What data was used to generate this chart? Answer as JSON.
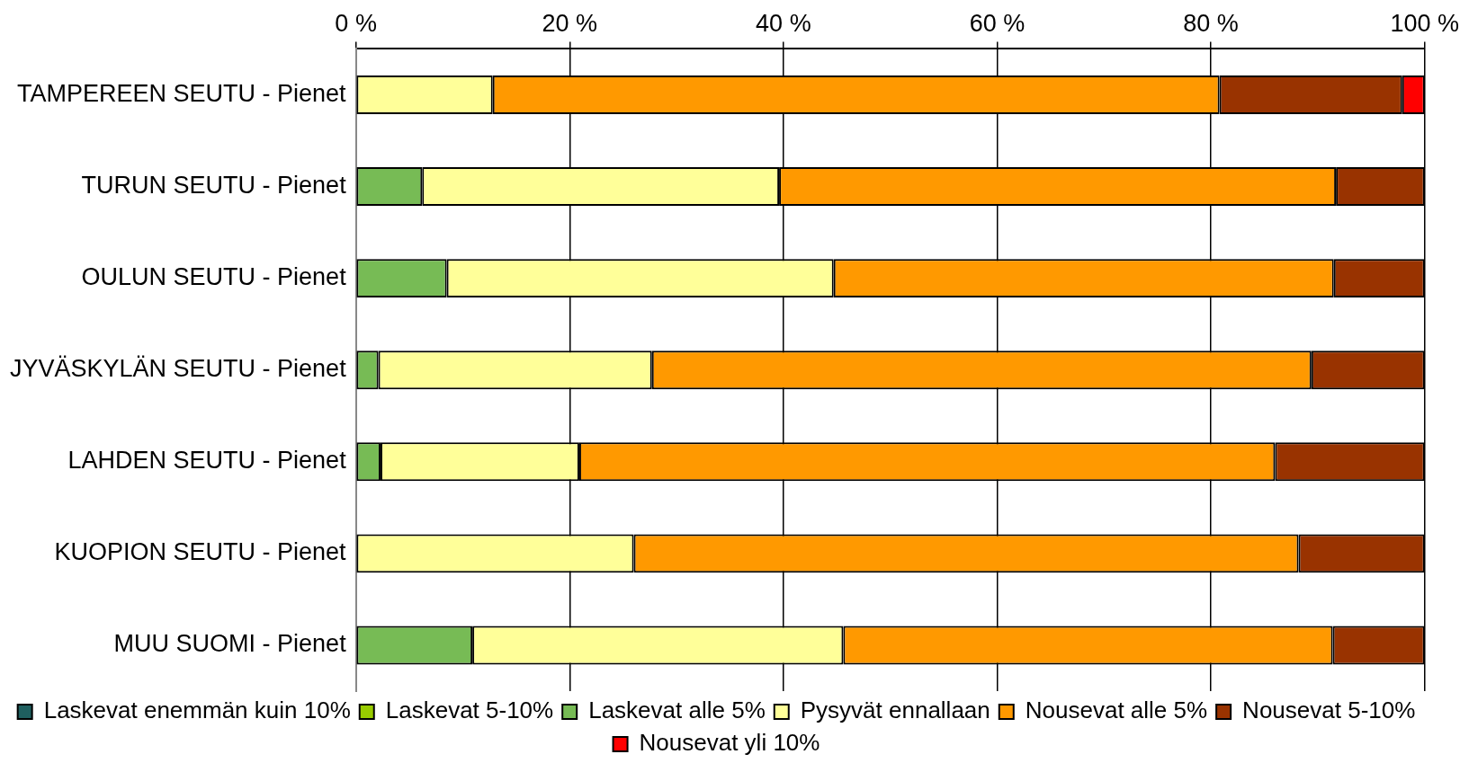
{
  "chart_data": {
    "type": "bar",
    "orientation": "horizontal",
    "stacked": true,
    "categories": [
      "TAMPEREEN SEUTU - Pienet",
      "TURUN SEUTU - Pienet",
      "OULUN SEUTU - Pienet",
      "JYVÄSKYLÄN SEUTU - Pienet",
      "LAHDEN SEUTU - Pienet",
      "KUOPION SEUTU - Pienet",
      "MUU SUOMI - Pienet"
    ],
    "series": [
      {
        "name": "Laskevat enemmän kuin 10%",
        "color": "#1f5f5f",
        "values": [
          0,
          0,
          0,
          0,
          0,
          0,
          0
        ]
      },
      {
        "name": "Laskevat 5-10%",
        "color": "#99cc00",
        "values": [
          0,
          0,
          0,
          0,
          0,
          0,
          0
        ]
      },
      {
        "name": "Laskevat alle 5%",
        "color": "#77bb55",
        "values": [
          0,
          6.2,
          8.5,
          2.1,
          2.3,
          0,
          10.9
        ]
      },
      {
        "name": "Pysyvät ennallaan",
        "color": "#ffff99",
        "values": [
          12.8,
          33.4,
          36.2,
          25.6,
          18.6,
          26.0,
          34.7
        ]
      },
      {
        "name": "Nousevat alle 5%",
        "color": "#ff9900",
        "values": [
          68.0,
          52.1,
          46.8,
          61.7,
          65.1,
          62.2,
          45.8
        ]
      },
      {
        "name": "Nousevat 5-10%",
        "color": "#993300",
        "values": [
          17.1,
          8.3,
          8.5,
          10.6,
          14.0,
          11.8,
          8.6
        ]
      },
      {
        "name": "Nousevat yli 10%",
        "color": "#ff0000",
        "values": [
          2.1,
          0,
          0,
          0,
          0,
          0,
          0
        ]
      }
    ],
    "xlim": [
      0,
      100
    ],
    "xticks": [
      {
        "value": 0,
        "label": "0 %"
      },
      {
        "value": 20,
        "label": "20 %"
      },
      {
        "value": 40,
        "label": "40 %"
      },
      {
        "value": 60,
        "label": "60 %"
      },
      {
        "value": 80,
        "label": "80 %"
      },
      {
        "value": 100,
        "label": "100 %"
      }
    ],
    "grid": "x",
    "legend": "bottom"
  }
}
